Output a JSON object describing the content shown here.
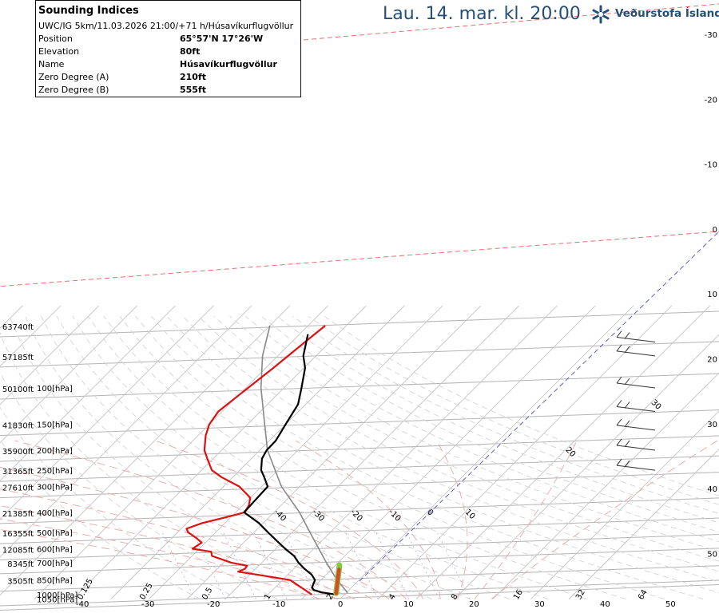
{
  "header": {
    "title": "Lau. 14. mar. kl. 20:00",
    "brand": "Veðurstofa Íslands",
    "brand_color": "#244f79"
  },
  "info_box": {
    "title": "Sounding Indices",
    "subtitle": "UWC/IG 5km/11.03.2026 21:00/+71 h/Húsavíkurflugvöllur",
    "rows": [
      {
        "label": "Position",
        "value": "65°57'N 17°26'W"
      },
      {
        "label": "Elevation",
        "value": "80ft"
      },
      {
        "label": "Name",
        "value": "Húsavíkurflugvöllur"
      },
      {
        "label": "Zero Degree (A)",
        "value": "210ft"
      },
      {
        "label": "Zero Degree (B)",
        "value": "555ft"
      }
    ]
  },
  "chart_data": {
    "type": "line",
    "title": "Skew-T log-P sounding diagram",
    "y_axis": "pressure (hPa), log scale",
    "x_axis": "temperature (°C), skewed",
    "pressure_levels": [
      {
        "p": 1050,
        "label": "1050[hPa]",
        "alt": ""
      },
      {
        "p": 1000,
        "label": "1000[hPa]",
        "alt": ""
      },
      {
        "p": 850,
        "label": "850[hPa]",
        "alt": "3505ft"
      },
      {
        "p": 700,
        "label": "700[hPa]",
        "alt": "8345ft"
      },
      {
        "p": 600,
        "label": "600[hPa]",
        "alt": "12085ft"
      },
      {
        "p": 500,
        "label": "500[hPa]",
        "alt": "16355ft"
      },
      {
        "p": 400,
        "label": "400[hPa]",
        "alt": "21385ft"
      },
      {
        "p": 300,
        "label": "300[hPa]",
        "alt": "27610ft"
      },
      {
        "p": 250,
        "label": "250[hPa]",
        "alt": "31365ft"
      },
      {
        "p": 200,
        "label": "200[hPa]",
        "alt": "35900ft"
      },
      {
        "p": 150,
        "label": "150[hPa]",
        "alt": "41830ft"
      },
      {
        "p": 100,
        "label": "100[hPa]",
        "alt": "50100ft"
      },
      {
        "p": 70,
        "label": "",
        "alt": "57185ft"
      },
      {
        "p": 50,
        "label": "",
        "alt": "63740ft"
      }
    ],
    "right_scale": [
      "-30",
      "-20",
      "-10",
      "0",
      "10",
      "20",
      "30",
      "40",
      "50"
    ],
    "bottom_temperature_labels": [
      "-40",
      "-30",
      "-20",
      "-10",
      "0",
      "10",
      "20",
      "30",
      "40",
      "50"
    ],
    "mixing_ratio_labels": [
      "0.125",
      "0.25",
      "0.5",
      "1",
      "2",
      "4",
      "8",
      "16",
      "32",
      "64"
    ],
    "isotherm_labels": [
      {
        "t": -40,
        "label": "-40"
      },
      {
        "t": -30,
        "label": "-30"
      },
      {
        "t": -20,
        "label": "-20"
      },
      {
        "t": -10,
        "label": "-10"
      },
      {
        "t": 0,
        "label": "0"
      },
      {
        "t": 10,
        "label": "10"
      },
      {
        "t": 20,
        "label": "20"
      },
      {
        "t": 30,
        "label": "30"
      }
    ],
    "temperature_series": {
      "name": "Temperature",
      "color": "#000000",
      "points": [
        {
          "p": 1000,
          "t": -2.1
        },
        {
          "p": 975,
          "t": -6.5
        },
        {
          "p": 950,
          "t": -9.2
        },
        {
          "p": 925,
          "t": -10.3
        },
        {
          "p": 900,
          "t": -10.7
        },
        {
          "p": 850,
          "t": -11.5
        },
        {
          "p": 800,
          "t": -13.8
        },
        {
          "p": 750,
          "t": -17.2
        },
        {
          "p": 700,
          "t": -20.4
        },
        {
          "p": 650,
          "t": -23.3
        },
        {
          "p": 600,
          "t": -27.5
        },
        {
          "p": 550,
          "t": -31.7
        },
        {
          "p": 500,
          "t": -36.3
        },
        {
          "p": 450,
          "t": -41.2
        },
        {
          "p": 400,
          "t": -47.8
        },
        {
          "p": 350,
          "t": -48.1
        },
        {
          "p": 300,
          "t": -48.4
        },
        {
          "p": 270,
          "t": -51.8
        },
        {
          "p": 250,
          "t": -54.4
        },
        {
          "p": 220,
          "t": -57.2
        },
        {
          "p": 200,
          "t": -58.2
        },
        {
          "p": 180,
          "t": -58.3
        },
        {
          "p": 150,
          "t": -60.0
        },
        {
          "p": 120,
          "t": -62.0
        },
        {
          "p": 100,
          "t": -65.4
        },
        {
          "p": 80,
          "t": -69.7
        },
        {
          "p": 70,
          "t": -73.3
        },
        {
          "p": 55,
          "t": -77.8
        }
      ]
    },
    "dewpoint_series": {
      "name": "Dew point",
      "color": "#dd1111",
      "points": [
        {
          "p": 1000,
          "t": -8.5
        },
        {
          "p": 950,
          "t": -11.5
        },
        {
          "p": 900,
          "t": -14.7
        },
        {
          "p": 850,
          "t": -18.0
        },
        {
          "p": 800,
          "t": -28.1
        },
        {
          "p": 775,
          "t": -33.8
        },
        {
          "p": 750,
          "t": -32.8
        },
        {
          "p": 725,
          "t": -33.0
        },
        {
          "p": 700,
          "t": -38.0
        },
        {
          "p": 650,
          "t": -44.8
        },
        {
          "p": 620,
          "t": -46.1
        },
        {
          "p": 600,
          "t": -51.8
        },
        {
          "p": 560,
          "t": -51.0
        },
        {
          "p": 530,
          "t": -53.8
        },
        {
          "p": 500,
          "t": -57.2
        },
        {
          "p": 480,
          "t": -58.6
        },
        {
          "p": 450,
          "t": -55.9
        },
        {
          "p": 420,
          "t": -50.9
        },
        {
          "p": 400,
          "t": -47.7
        },
        {
          "p": 370,
          "t": -48.4
        },
        {
          "p": 340,
          "t": -50.0
        },
        {
          "p": 300,
          "t": -55.8
        },
        {
          "p": 270,
          "t": -63.0
        },
        {
          "p": 250,
          "t": -67.3
        },
        {
          "p": 220,
          "t": -71.5
        },
        {
          "p": 200,
          "t": -74.5
        },
        {
          "p": 170,
          "t": -78.0
        },
        {
          "p": 150,
          "t": -80.0
        },
        {
          "p": 130,
          "t": -81.0
        },
        {
          "p": 110,
          "t": -80.0
        },
        {
          "p": 100,
          "t": -79.4
        },
        {
          "p": 80,
          "t": -78.0
        },
        {
          "p": 60,
          "t": -76.5
        },
        {
          "p": 50,
          "t": -75.5
        }
      ]
    },
    "parcel_line": {
      "color": "#888888",
      "points": [
        {
          "p": 980,
          "t": 0.4
        },
        {
          "p": 850,
          "t": -5.7
        },
        {
          "p": 700,
          "t": -13.1
        },
        {
          "p": 500,
          "t": -25.3
        },
        {
          "p": 400,
          "t": -33.3
        },
        {
          "p": 300,
          "t": -44.8
        },
        {
          "p": 200,
          "t": -58.0
        },
        {
          "p": 150,
          "t": -65.5
        },
        {
          "p": 100,
          "t": -76.0
        },
        {
          "p": 70,
          "t": -84.0
        },
        {
          "p": 50,
          "t": -90.0
        }
      ]
    },
    "freezing_marker": {
      "colors": [
        "#d94a2a",
        "#7fcf3a"
      ],
      "points": [
        {
          "p": 985,
          "t": -2.5
        },
        {
          "p": 720,
          "t": -9.0
        }
      ]
    },
    "wind_barb_levels": [
      250,
      200,
      160,
      130,
      100,
      70,
      60
    ],
    "p_range": [
      50,
      1050
    ]
  }
}
